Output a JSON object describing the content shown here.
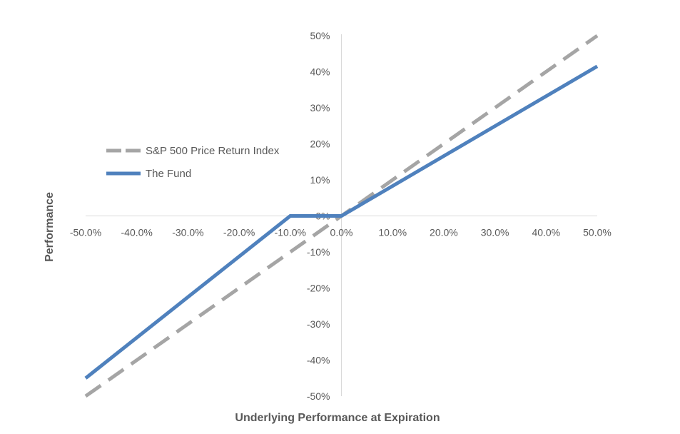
{
  "chart_data": {
    "type": "line",
    "title": "",
    "xlabel": "Underlying Performance at Expiration",
    "ylabel": "Performance",
    "xlim": [
      -50,
      50
    ],
    "ylim": [
      -50,
      50
    ],
    "x_ticks": [
      -50,
      -40,
      -30,
      -20,
      -10,
      0,
      10,
      20,
      30,
      40,
      50
    ],
    "y_ticks": [
      -50,
      -40,
      -30,
      -20,
      -10,
      0,
      10,
      20,
      30,
      40,
      50
    ],
    "x_tick_labels": [
      "-50.0%",
      "-40.0%",
      "-30.0%",
      "-20.0%",
      "-10.0%",
      "0.0%",
      "10.0%",
      "20.0%",
      "30.0%",
      "40.0%",
      "50.0%"
    ],
    "y_tick_labels": [
      "-50%",
      "-40%",
      "-30%",
      "-20%",
      "-10%",
      "0%",
      "10%",
      "20%",
      "30%",
      "40%",
      "50%"
    ],
    "grid": false,
    "legend_position": "left",
    "series": [
      {
        "name": "S&P 500 Price Return Index",
        "color": "#A5A5A5",
        "style": "dashed",
        "x": [
          -50,
          50
        ],
        "y": [
          -50,
          50
        ]
      },
      {
        "name": "The Fund",
        "color": "#4F81BD",
        "style": "solid",
        "x": [
          -50,
          -10,
          0,
          50
        ],
        "y": [
          -45,
          0,
          0,
          41.5
        ]
      }
    ]
  }
}
